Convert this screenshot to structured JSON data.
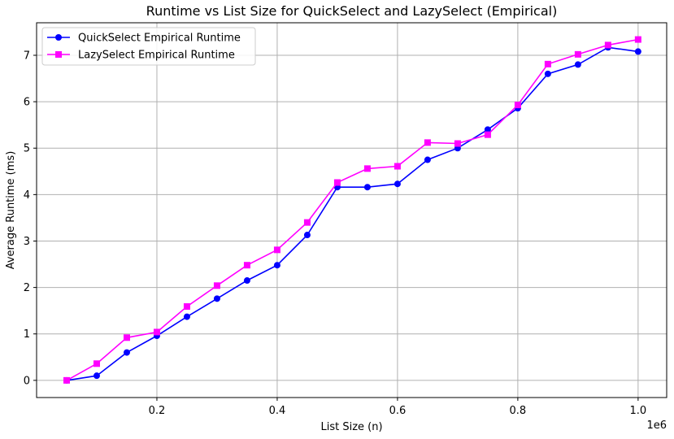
{
  "chart_data": {
    "type": "line",
    "title": "Runtime vs List Size for QuickSelect and LazySelect (Empirical)",
    "xlabel": "List Size (n)",
    "ylabel": "Average Runtime (ms)",
    "x_offset_text": "1e6",
    "xlim": [
      0.0,
      1.0475
    ],
    "ylim": [
      -0.37,
      7.7
    ],
    "x_ticks": [
      0.2,
      0.4,
      0.6,
      0.8,
      1.0
    ],
    "x_tick_labels": [
      "0.2",
      "0.4",
      "0.6",
      "0.8",
      "1.0"
    ],
    "y_ticks": [
      0,
      1,
      2,
      3,
      4,
      5,
      6,
      7
    ],
    "y_tick_labels": [
      "0",
      "1",
      "2",
      "3",
      "4",
      "5",
      "6",
      "7"
    ],
    "grid": true,
    "legend_position": "upper-left",
    "x": [
      0.05,
      0.1,
      0.15,
      0.2,
      0.25,
      0.3,
      0.35,
      0.4,
      0.45,
      0.5,
      0.55,
      0.6,
      0.65,
      0.7,
      0.75,
      0.8,
      0.85,
      0.9,
      0.95,
      1.0
    ],
    "series": [
      {
        "name": "QuickSelect Empirical Runtime",
        "color": "#0000ff",
        "marker": "circle",
        "values": [
          0.0,
          0.1,
          0.6,
          0.96,
          1.37,
          1.76,
          2.15,
          2.48,
          3.13,
          4.16,
          4.16,
          4.23,
          4.75,
          5.0,
          5.4,
          5.86,
          6.6,
          6.8,
          7.17,
          7.08
        ]
      },
      {
        "name": "LazySelect Empirical Runtime",
        "color": "#ff00ff",
        "marker": "square",
        "values": [
          0.0,
          0.36,
          0.92,
          1.04,
          1.59,
          2.04,
          2.48,
          2.81,
          3.4,
          4.26,
          4.56,
          4.61,
          5.12,
          5.1,
          5.29,
          5.93,
          6.81,
          7.02,
          7.22,
          7.34
        ]
      }
    ]
  }
}
